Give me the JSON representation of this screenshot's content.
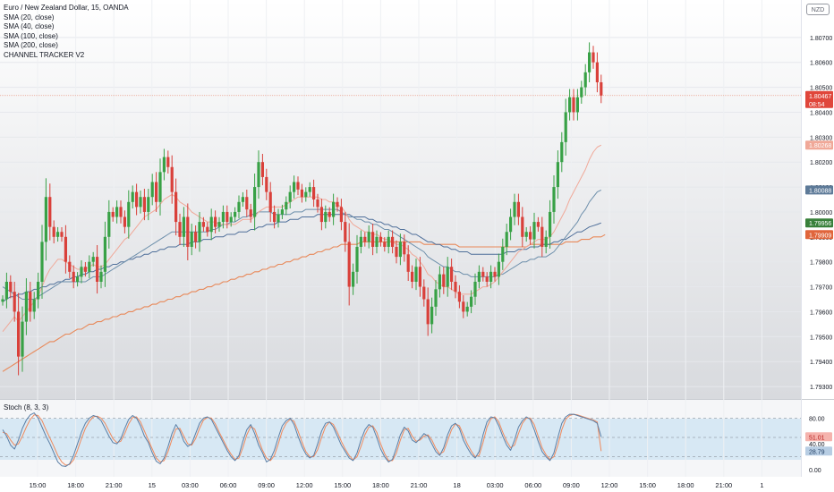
{
  "chart_data": [
    {
      "type": "candlestick",
      "title": "Euro / New Zealand Dollar, 15, OANDA",
      "indicators": [
        "SMA (20, close)",
        "SMA (40, close)",
        "SMA (100, close)",
        "SMA (200, close)",
        "CHANNEL TRACKER V2"
      ],
      "currency": "NZD",
      "ylim": [
        1.7925,
        1.8085
      ],
      "y_ticks": [
        "1.80700",
        "1.80600",
        "1.80500",
        "1.80400",
        "1.80300",
        "1.80200",
        "1.80100",
        "1.80000",
        "1.79900",
        "1.79800",
        "1.79700",
        "1.79600",
        "1.79500",
        "1.79400",
        "1.79300"
      ],
      "x_ticks": [
        "15:00",
        "18:00",
        "21:00",
        "15",
        "03:00",
        "06:00",
        "09:00",
        "12:00",
        "15:00",
        "18:00",
        "21:00",
        "18",
        "03:00",
        "06:00",
        "09:00",
        "12:00",
        "15:00",
        "18:00",
        "21:00",
        "1"
      ],
      "price_labels": [
        {
          "text": "1.80467",
          "sub": "08:54",
          "value": 1.80467,
          "color": "#e0463b"
        },
        {
          "text": "1.80268",
          "value": 1.80268,
          "color": "#f0a898"
        },
        {
          "text": "1.80088",
          "value": 1.80088,
          "color": "#5d7a98"
        },
        {
          "text": "1.79956",
          "value": 1.79956,
          "color": "#38803a"
        },
        {
          "text": "1.79909",
          "value": 1.79909,
          "color": "#e0653b"
        }
      ],
      "close": [
        1.7965,
        1.7972,
        1.7968,
        1.796,
        1.7942,
        1.7956,
        1.7968,
        1.796,
        1.7965,
        1.7972,
        1.7988,
        1.8006,
        1.7994,
        1.799,
        1.7992,
        1.799,
        1.798,
        1.7976,
        1.7972,
        1.7974,
        1.7978,
        1.7976,
        1.798,
        1.7982,
        1.7972,
        1.7976,
        1.799,
        1.8,
        1.7998,
        1.8002,
        1.7998,
        1.7994,
        1.8004,
        1.8008,
        1.8002,
        1.8006,
        1.8,
        1.8006,
        1.8012,
        1.8004,
        1.8016,
        1.8022,
        1.8018,
        1.8008,
        1.7996,
        1.799,
        1.7998,
        1.7986,
        1.7992,
        1.7988,
        1.7996,
        1.7994,
        1.7992,
        1.7998,
        1.7994,
        1.7996,
        1.8,
        1.7996,
        1.7998,
        1.8,
        1.8004,
        1.8006,
        1.8001,
        1.7998,
        1.801,
        1.802,
        1.8014,
        1.8008,
        1.8,
        1.7996,
        1.7999,
        1.8001,
        1.8004,
        1.8008,
        1.8012,
        1.8009,
        1.8006,
        1.8008,
        1.801,
        1.8005,
        1.8002,
        1.7996,
        1.8,
        1.7998,
        1.8004,
        1.8002,
        1.7996,
        1.7988,
        1.797,
        1.7976,
        1.7986,
        1.799,
        1.7988,
        1.7992,
        1.7986,
        1.799,
        1.7988,
        1.7986,
        1.799,
        1.7986,
        1.7982,
        1.7988,
        1.7983,
        1.7976,
        1.7972,
        1.7978,
        1.797,
        1.7965,
        1.7955,
        1.7962,
        1.7969,
        1.7975,
        1.797,
        1.7978,
        1.7972,
        1.7968,
        1.7964,
        1.796,
        1.7962,
        1.7966,
        1.7972,
        1.7976,
        1.7974,
        1.7972,
        1.7976,
        1.7974,
        1.798,
        1.7986,
        1.7992,
        1.7998,
        1.8004,
        1.7998,
        1.799,
        1.7992,
        1.7989,
        1.7996,
        1.7994,
        1.7986,
        1.799,
        1.8,
        1.801,
        1.802,
        1.8028,
        1.804,
        1.8046,
        1.804,
        1.8046,
        1.805,
        1.8056,
        1.8064,
        1.806,
        1.8052,
        1.80467
      ],
      "sma_20": [
        1.7952,
        1.7954,
        1.7956,
        1.7958,
        1.7956,
        1.7958,
        1.796,
        1.7962,
        1.7964,
        1.7966,
        1.797,
        1.7974,
        1.7977,
        1.7979,
        1.7981,
        1.7981,
        1.798,
        1.7979,
        1.7978,
        1.7977,
        1.7977,
        1.7977,
        1.7978,
        1.7979,
        1.7978,
        1.7978,
        1.7979,
        1.7981,
        1.7983,
        1.7985,
        1.7987,
        1.7989,
        1.799,
        1.7992,
        1.7994,
        1.7996,
        1.7998,
        1.7999,
        1.8,
        1.8001,
        1.8003,
        1.8005,
        1.8006,
        1.8007,
        1.8006,
        1.8004,
        1.8003,
        1.8002,
        1.8,
        1.7999,
        1.7998,
        1.7997,
        1.7996,
        1.7996,
        1.7996,
        1.7995,
        1.7995,
        1.7995,
        1.7995,
        1.7995,
        1.7996,
        1.7997,
        1.7997,
        1.7997,
        1.7998,
        1.8,
        1.8001,
        1.8002,
        1.8002,
        1.8002,
        1.8002,
        1.8002,
        1.8003,
        1.8004,
        1.8005,
        1.8006,
        1.8006,
        1.8006,
        1.8006,
        1.8006,
        1.8006,
        1.8005,
        1.8005,
        1.8004,
        1.8004,
        1.8003,
        1.8002,
        1.8,
        1.7997,
        1.7995,
        1.7994,
        1.7993,
        1.7992,
        1.7992,
        1.7991,
        1.7991,
        1.799,
        1.7989,
        1.7989,
        1.7988,
        1.7987,
        1.7987,
        1.7986,
        1.7985,
        1.7983,
        1.7982,
        1.798,
        1.7978,
        1.7975,
        1.7974,
        1.7972,
        1.7971,
        1.797,
        1.797,
        1.7969,
        1.7968,
        1.7967,
        1.7967,
        1.7967,
        1.7967,
        1.7968,
        1.7969,
        1.797,
        1.797,
        1.7971,
        1.7972,
        1.7974,
        1.7976,
        1.7978,
        1.798,
        1.7982,
        1.7984,
        1.7985,
        1.7986,
        1.7987,
        1.7988,
        1.7989,
        1.7989,
        1.7989,
        1.799,
        1.7992,
        1.7995,
        1.7998,
        1.8001,
        1.8005,
        1.8008,
        1.8011,
        1.8014,
        1.8017,
        1.8021,
        1.8024,
        1.8026,
        1.80268
      ],
      "sma_40": [
        1.797,
        1.7969,
        1.7968,
        1.7967,
        1.7966,
        1.7965,
        1.7965,
        1.7965,
        1.7965,
        1.7966,
        1.7967,
        1.7968,
        1.7969,
        1.797,
        1.7971,
        1.7972,
        1.7972,
        1.7972,
        1.7972,
        1.7972,
        1.7972,
        1.7972,
        1.7973,
        1.7974,
        1.7974,
        1.7974,
        1.7975,
        1.7976,
        1.7977,
        1.7978,
        1.7979,
        1.798,
        1.7981,
        1.7982,
        1.7983,
        1.7984,
        1.7985,
        1.7986,
        1.7987,
        1.7988,
        1.7989,
        1.799,
        1.7991,
        1.7992,
        1.7992,
        1.7992,
        1.7992,
        1.7992,
        1.7992,
        1.7992,
        1.7992,
        1.7992,
        1.7992,
        1.7993,
        1.7993,
        1.7994,
        1.7995,
        1.7995,
        1.7996,
        1.7996,
        1.7997,
        1.7998,
        1.7998,
        1.7999,
        1.7999,
        1.8,
        1.8,
        1.8,
        1.8,
        1.7999,
        1.7999,
        1.7999,
        1.7999,
        1.7999,
        1.8,
        1.8,
        1.8,
        1.8001,
        1.8001,
        1.8001,
        1.8001,
        1.8001,
        1.8001,
        1.8001,
        1.8001,
        1.8001,
        1.8,
        1.7999,
        1.7998,
        1.7998,
        1.7997,
        1.7997,
        1.7996,
        1.7996,
        1.7995,
        1.7995,
        1.7994,
        1.7993,
        1.7993,
        1.7992,
        1.7991,
        1.799,
        1.7989,
        1.7988,
        1.7987,
        1.7986,
        1.7985,
        1.7984,
        1.7982,
        1.7981,
        1.798,
        1.7979,
        1.7978,
        1.7978,
        1.7977,
        1.7976,
        1.7976,
        1.7975,
        1.7975,
        1.7974,
        1.7974,
        1.7974,
        1.7974,
        1.7974,
        1.7974,
        1.7974,
        1.7975,
        1.7975,
        1.7976,
        1.7977,
        1.7978,
        1.7979,
        1.798,
        1.798,
        1.7981,
        1.7981,
        1.7982,
        1.7982,
        1.7982,
        1.7983,
        1.7984,
        1.7986,
        1.7988,
        1.799,
        1.7992,
        1.7994,
        1.7996,
        1.7999,
        1.8001,
        1.8004,
        1.8006,
        1.8008,
        1.80088
      ],
      "sma_100": [
        1.7964,
        1.7965,
        1.7966,
        1.7966,
        1.7967,
        1.7967,
        1.7968,
        1.7968,
        1.7969,
        1.7969,
        1.797,
        1.797,
        1.7971,
        1.7971,
        1.7972,
        1.7972,
        1.7973,
        1.7973,
        1.7974,
        1.7974,
        1.7975,
        1.7975,
        1.7976,
        1.7976,
        1.7977,
        1.7977,
        1.7978,
        1.7978,
        1.7979,
        1.7979,
        1.798,
        1.798,
        1.7981,
        1.7981,
        1.7982,
        1.7982,
        1.7983,
        1.7983,
        1.7984,
        1.7984,
        1.7985,
        1.7985,
        1.7986,
        1.7986,
        1.7986,
        1.7987,
        1.7987,
        1.7987,
        1.7988,
        1.7988,
        1.7988,
        1.7989,
        1.7989,
        1.7989,
        1.799,
        1.799,
        1.799,
        1.7991,
        1.7991,
        1.7991,
        1.7992,
        1.7992,
        1.7992,
        1.7993,
        1.7993,
        1.7994,
        1.7994,
        1.7995,
        1.7995,
        1.7995,
        1.7996,
        1.7996,
        1.7996,
        1.7997,
        1.7997,
        1.7997,
        1.7998,
        1.7998,
        1.7998,
        1.7998,
        1.7999,
        1.7999,
        1.7999,
        1.7999,
        1.7999,
        1.7999,
        1.7999,
        1.7999,
        1.7999,
        1.7998,
        1.7998,
        1.7998,
        1.7998,
        1.7997,
        1.7997,
        1.7996,
        1.7996,
        1.7995,
        1.7995,
        1.7994,
        1.7994,
        1.7993,
        1.7993,
        1.7992,
        1.7991,
        1.7991,
        1.799,
        1.7989,
        1.7988,
        1.7988,
        1.7987,
        1.7987,
        1.7986,
        1.7986,
        1.7985,
        1.7985,
        1.7984,
        1.7984,
        1.7984,
        1.7983,
        1.7983,
        1.7983,
        1.7983,
        1.7983,
        1.7983,
        1.7983,
        1.7983,
        1.7983,
        1.7984,
        1.7984,
        1.7984,
        1.7985,
        1.7985,
        1.7985,
        1.7986,
        1.7986,
        1.7986,
        1.7987,
        1.7987,
        1.7987,
        1.7988,
        1.7988,
        1.7989,
        1.7989,
        1.799,
        1.7991,
        1.7992,
        1.7992,
        1.7993,
        1.7994,
        1.79945,
        1.7995,
        1.79956
      ],
      "sma_200": [
        1.7936,
        1.7937,
        1.7938,
        1.7939,
        1.794,
        1.7941,
        1.7942,
        1.7943,
        1.7944,
        1.7945,
        1.7946,
        1.7947,
        1.7948,
        1.7948,
        1.7949,
        1.795,
        1.7951,
        1.7951,
        1.7952,
        1.7953,
        1.7953,
        1.7954,
        1.7955,
        1.7955,
        1.7956,
        1.7956,
        1.7957,
        1.7957,
        1.7958,
        1.7958,
        1.7959,
        1.7959,
        1.796,
        1.796,
        1.7961,
        1.7961,
        1.7962,
        1.7962,
        1.7963,
        1.7963,
        1.7964,
        1.7964,
        1.7965,
        1.7965,
        1.7966,
        1.7966,
        1.7967,
        1.7967,
        1.7968,
        1.7968,
        1.7969,
        1.7969,
        1.797,
        1.797,
        1.7971,
        1.7971,
        1.7972,
        1.7972,
        1.7973,
        1.7973,
        1.7974,
        1.7974,
        1.7975,
        1.7975,
        1.7976,
        1.7976,
        1.7977,
        1.7977,
        1.7978,
        1.7978,
        1.7979,
        1.7979,
        1.798,
        1.798,
        1.7981,
        1.7981,
        1.7982,
        1.7982,
        1.7983,
        1.7983,
        1.7984,
        1.7984,
        1.7985,
        1.7985,
        1.7986,
        1.7986,
        1.7987,
        1.7987,
        1.7987,
        1.7987,
        1.7987,
        1.7988,
        1.7988,
        1.7988,
        1.7988,
        1.7988,
        1.7988,
        1.7988,
        1.7988,
        1.7988,
        1.7988,
        1.7988,
        1.7988,
        1.7988,
        1.7988,
        1.7988,
        1.7988,
        1.7987,
        1.7987,
        1.7987,
        1.7987,
        1.7987,
        1.7987,
        1.7987,
        1.7987,
        1.7987,
        1.7986,
        1.7986,
        1.7986,
        1.7986,
        1.7986,
        1.7986,
        1.7986,
        1.7986,
        1.7986,
        1.7986,
        1.7986,
        1.7986,
        1.7986,
        1.7986,
        1.7986,
        1.7986,
        1.7986,
        1.7986,
        1.7987,
        1.7987,
        1.7987,
        1.7987,
        1.7987,
        1.7987,
        1.7987,
        1.7987,
        1.7987,
        1.7988,
        1.7988,
        1.7988,
        1.7988,
        1.7989,
        1.7989,
        1.7989,
        1.799,
        1.799,
        1.799,
        1.79909
      ]
    },
    {
      "type": "line",
      "title": "Stoch (8, 3, 3)",
      "ylim": [
        0,
        100
      ],
      "y_ticks": [
        "80.00",
        "40.00",
        "0.00"
      ],
      "bands": [
        80,
        50,
        20
      ],
      "k_label": "51.01",
      "d_label": "28.79",
      "k": [
        62,
        52,
        38,
        32,
        46,
        64,
        77,
        85,
        88,
        80,
        66,
        52,
        40,
        26,
        12,
        6,
        5,
        9,
        22,
        40,
        58,
        72,
        80,
        84,
        82,
        76,
        64,
        52,
        42,
        40,
        48,
        64,
        78,
        84,
        80,
        68,
        52,
        42,
        26,
        13,
        9,
        18,
        36,
        56,
        70,
        60,
        44,
        36,
        40,
        56,
        72,
        80,
        82,
        78,
        66,
        54,
        42,
        30,
        20,
        14,
        22,
        44,
        62,
        70,
        56,
        38,
        26,
        12,
        16,
        30,
        50,
        68,
        76,
        80,
        70,
        52,
        36,
        24,
        18,
        22,
        40,
        60,
        72,
        74,
        66,
        52,
        38,
        28,
        18,
        14,
        26,
        46,
        62,
        70,
        66,
        50,
        32,
        20,
        12,
        16,
        34,
        54,
        66,
        60,
        46,
        42,
        48,
        56,
        52,
        40,
        28,
        22,
        34,
        54,
        68,
        72,
        64,
        46,
        34,
        24,
        18,
        28,
        54,
        74,
        82,
        80,
        68,
        52,
        38,
        30,
        46,
        66,
        76,
        82,
        78,
        62,
        44,
        28,
        20,
        14,
        26,
        50,
        72,
        82,
        86,
        86,
        84,
        82,
        80,
        78,
        76,
        72,
        51
      ],
      "d": [
        58,
        56,
        46,
        38,
        40,
        52,
        66,
        78,
        85,
        84,
        76,
        62,
        49,
        36,
        22,
        12,
        7,
        8,
        15,
        30,
        48,
        64,
        75,
        82,
        83,
        80,
        72,
        60,
        48,
        42,
        44,
        56,
        71,
        81,
        82,
        74,
        60,
        46,
        32,
        18,
        12,
        14,
        28,
        47,
        63,
        64,
        52,
        40,
        38,
        48,
        64,
        77,
        81,
        80,
        71,
        58,
        46,
        34,
        24,
        16,
        18,
        34,
        54,
        67,
        63,
        46,
        30,
        18,
        14,
        22,
        40,
        60,
        72,
        78,
        75,
        60,
        43,
        28,
        20,
        20,
        31,
        50,
        67,
        74,
        70,
        58,
        44,
        32,
        22,
        15,
        20,
        36,
        54,
        66,
        68,
        58,
        40,
        25,
        14,
        14,
        26,
        46,
        62,
        64,
        52,
        44,
        46,
        52,
        54,
        46,
        33,
        24,
        28,
        45,
        62,
        71,
        68,
        54,
        40,
        29,
        20,
        22,
        42,
        66,
        79,
        82,
        74,
        58,
        44,
        34,
        38,
        56,
        72,
        80,
        80,
        70,
        52,
        34,
        23,
        16,
        20,
        38,
        62,
        78,
        84,
        86,
        85,
        83,
        81,
        79,
        77,
        74,
        28.79
      ]
    }
  ]
}
